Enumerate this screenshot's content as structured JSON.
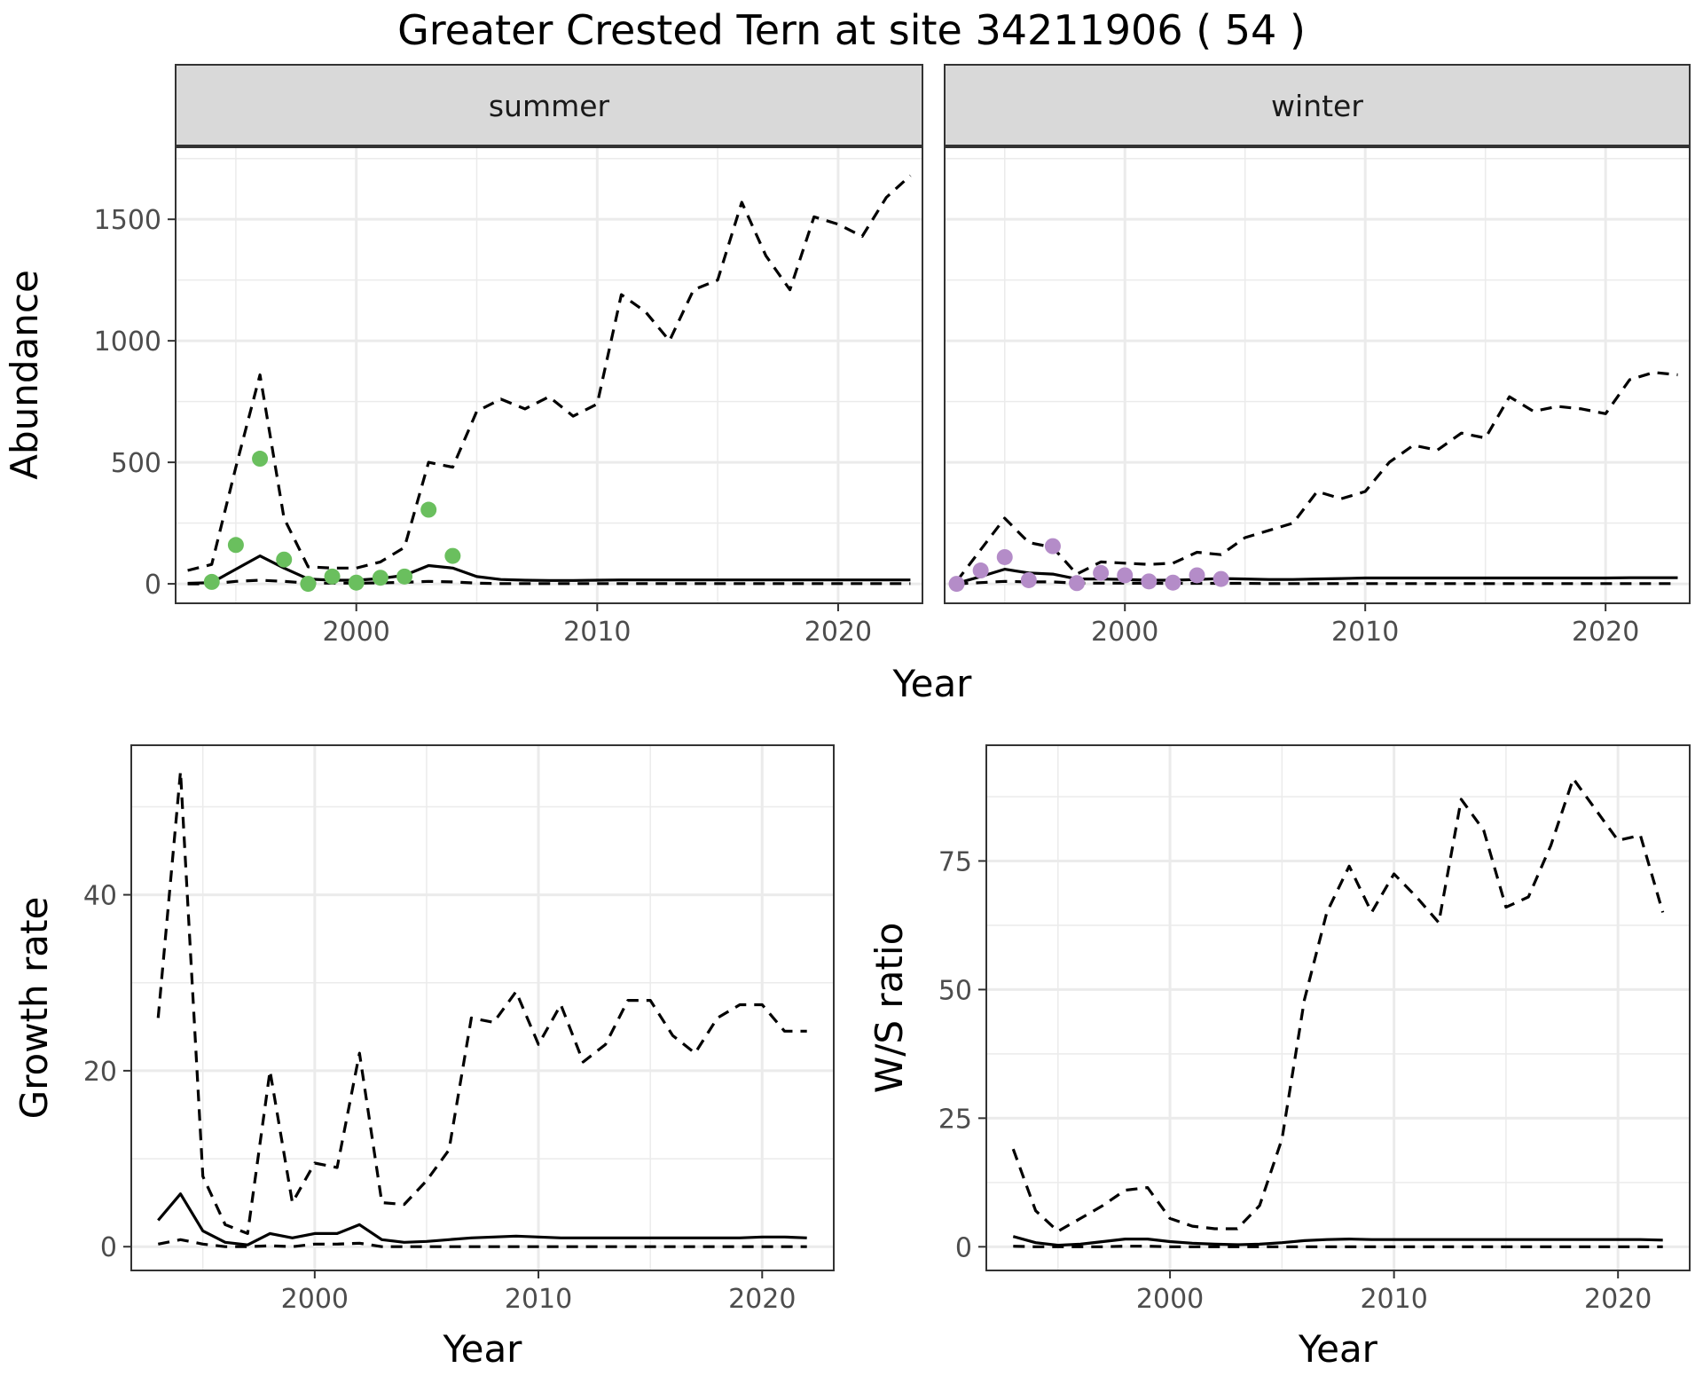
{
  "title": "Greater Crested Tern at site 34211906 ( 54 )",
  "colors": {
    "summer_points": "#6abf5e",
    "winter_points": "#b48cc8",
    "lines": "#000000",
    "strip_fill": "#d9d9d9",
    "grid": "#ebebeb"
  },
  "chart_data": [
    {
      "type": "line",
      "facet": "summer",
      "xlabel": "Year",
      "ylabel": "Abundance",
      "xlim": [
        1992.5,
        2023.5
      ],
      "ylim": [
        -80,
        1800
      ],
      "xticks": [
        2000,
        2010,
        2020
      ],
      "yticks": [
        0,
        500,
        1000,
        1500
      ],
      "point_color": "#6abf5e",
      "series": [
        {
          "role": "estimate",
          "style": "solid",
          "x": [
            1993,
            1994,
            1995,
            1996,
            1997,
            1998,
            1999,
            2000,
            2001,
            2002,
            2003,
            2004,
            2005,
            2006,
            2007,
            2008,
            2009,
            2010,
            2011,
            2012,
            2013,
            2014,
            2015,
            2016,
            2017,
            2018,
            2019,
            2020,
            2021,
            2022,
            2023
          ],
          "y": [
            2,
            5,
            60,
            115,
            65,
            20,
            15,
            15,
            22,
            35,
            75,
            65,
            30,
            18,
            15,
            14,
            14,
            15,
            16,
            16,
            16,
            16,
            16,
            16,
            16,
            16,
            16,
            16,
            16,
            16,
            16
          ]
        },
        {
          "role": "upper",
          "style": "dashed",
          "x": [
            1993,
            1994,
            1995,
            1996,
            1997,
            1998,
            1999,
            2000,
            2001,
            2002,
            2003,
            2004,
            2005,
            2006,
            2007,
            2008,
            2009,
            2010,
            2011,
            2012,
            2013,
            2014,
            2015,
            2016,
            2017,
            2018,
            2019,
            2020,
            2021,
            2022,
            2023
          ],
          "y": [
            55,
            80,
            480,
            860,
            270,
            70,
            65,
            65,
            90,
            150,
            500,
            480,
            710,
            760,
            720,
            770,
            690,
            740,
            1190,
            1120,
            1000,
            1210,
            1250,
            1570,
            1350,
            1210,
            1510,
            1480,
            1430,
            1590,
            1680
          ]
        },
        {
          "role": "lower",
          "style": "dashed",
          "x": [
            1993,
            1994,
            1995,
            1996,
            1997,
            1998,
            1999,
            2000,
            2001,
            2002,
            2003,
            2004,
            2005,
            2006,
            2007,
            2008,
            2009,
            2010,
            2011,
            2012,
            2013,
            2014,
            2015,
            2016,
            2017,
            2018,
            2019,
            2020,
            2021,
            2022,
            2023
          ],
          "y": [
            0,
            0,
            10,
            15,
            10,
            3,
            3,
            3,
            4,
            6,
            10,
            8,
            3,
            1,
            1,
            1,
            1,
            1,
            1,
            1,
            1,
            1,
            1,
            1,
            1,
            1,
            1,
            1,
            1,
            1,
            1
          ]
        }
      ],
      "points": {
        "x": [
          1994,
          1995,
          1996,
          1997,
          1998,
          1999,
          2000,
          2001,
          2002,
          2003,
          2004
        ],
        "y": [
          8,
          160,
          515,
          100,
          0,
          30,
          5,
          25,
          30,
          305,
          115
        ]
      }
    },
    {
      "type": "line",
      "facet": "winter",
      "xlabel": "Year",
      "ylabel": "",
      "xlim": [
        1992.5,
        2023.5
      ],
      "ylim": [
        -80,
        1800
      ],
      "xticks": [
        2000,
        2010,
        2020
      ],
      "yticks": [
        0,
        500,
        1000,
        1500
      ],
      "point_color": "#b48cc8",
      "series": [
        {
          "role": "estimate",
          "style": "solid",
          "x": [
            1993,
            1994,
            1995,
            1996,
            1997,
            1998,
            1999,
            2000,
            2001,
            2002,
            2003,
            2004,
            2005,
            2006,
            2007,
            2008,
            2009,
            2010,
            2011,
            2012,
            2013,
            2014,
            2015,
            2016,
            2017,
            2018,
            2019,
            2020,
            2021,
            2022,
            2023
          ],
          "y": [
            2,
            30,
            60,
            45,
            40,
            20,
            20,
            18,
            15,
            15,
            18,
            22,
            20,
            18,
            18,
            20,
            22,
            24,
            24,
            24,
            24,
            24,
            24,
            24,
            24,
            24,
            24,
            24,
            25,
            25,
            25
          ]
        },
        {
          "role": "upper",
          "style": "dashed",
          "x": [
            1993,
            1994,
            1995,
            1996,
            1997,
            1998,
            1999,
            2000,
            2001,
            2002,
            2003,
            2004,
            2005,
            2006,
            2007,
            2008,
            2009,
            2010,
            2011,
            2012,
            2013,
            2014,
            2015,
            2016,
            2017,
            2018,
            2019,
            2020,
            2021,
            2022,
            2023
          ],
          "y": [
            10,
            140,
            270,
            170,
            150,
            40,
            90,
            85,
            80,
            85,
            130,
            120,
            190,
            220,
            250,
            380,
            350,
            380,
            500,
            570,
            550,
            620,
            600,
            770,
            710,
            730,
            720,
            700,
            840,
            870,
            860
          ]
        },
        {
          "role": "lower",
          "style": "dashed",
          "x": [
            1993,
            1994,
            1995,
            1996,
            1997,
            1998,
            1999,
            2000,
            2001,
            2002,
            2003,
            2004,
            2005,
            2006,
            2007,
            2008,
            2009,
            2010,
            2011,
            2012,
            2013,
            2014,
            2015,
            2016,
            2017,
            2018,
            2019,
            2020,
            2021,
            2022,
            2023
          ],
          "y": [
            0,
            5,
            10,
            8,
            8,
            3,
            3,
            3,
            2,
            2,
            2,
            2,
            2,
            1,
            1,
            1,
            1,
            1,
            1,
            1,
            1,
            1,
            1,
            1,
            1,
            1,
            1,
            1,
            1,
            1,
            1
          ]
        }
      ],
      "points": {
        "x": [
          1993,
          1994,
          1995,
          1996,
          1997,
          1998,
          1999,
          2000,
          2001,
          2002,
          2003,
          2004
        ],
        "y": [
          0,
          55,
          110,
          15,
          155,
          3,
          45,
          35,
          10,
          5,
          35,
          20
        ]
      }
    },
    {
      "type": "line",
      "xlabel": "Year",
      "ylabel": "Growth rate",
      "xlim": [
        1991.8,
        2023.2
      ],
      "ylim": [
        -2.7,
        57
      ],
      "xticks": [
        2000,
        2010,
        2020
      ],
      "yticks": [
        0,
        20,
        40
      ],
      "series": [
        {
          "role": "estimate",
          "style": "solid",
          "x": [
            1993,
            1994,
            1995,
            1996,
            1997,
            1998,
            1999,
            2000,
            2001,
            2002,
            2003,
            2004,
            2005,
            2006,
            2007,
            2008,
            2009,
            2010,
            2011,
            2012,
            2013,
            2014,
            2015,
            2016,
            2017,
            2018,
            2019,
            2020,
            2021,
            2022
          ],
          "y": [
            3,
            6,
            1.8,
            0.5,
            0.2,
            1.5,
            1,
            1.5,
            1.5,
            2.5,
            0.8,
            0.5,
            0.6,
            0.8,
            1,
            1.1,
            1.2,
            1.1,
            1,
            1,
            1,
            1,
            1,
            1,
            1,
            1,
            1,
            1.1,
            1.1,
            1
          ]
        },
        {
          "role": "upper",
          "style": "dashed",
          "x": [
            1993,
            1994,
            1995,
            1996,
            1997,
            1998,
            1999,
            2000,
            2001,
            2002,
            2003,
            2004,
            2005,
            2006,
            2007,
            2008,
            2009,
            2010,
            2011,
            2012,
            2013,
            2014,
            2015,
            2016,
            2017,
            2018,
            2019,
            2020,
            2021,
            2022
          ],
          "y": [
            26,
            54,
            8,
            2.5,
            1.5,
            20,
            5,
            9.5,
            9,
            22,
            5,
            4.8,
            7.5,
            11,
            26,
            25.5,
            29,
            23,
            27.5,
            21,
            23,
            28,
            28,
            24,
            22,
            26,
            27.5,
            27.5,
            24.5,
            24.5
          ]
        },
        {
          "role": "lower",
          "style": "dashed",
          "x": [
            1993,
            1994,
            1995,
            1996,
            1997,
            1998,
            1999,
            2000,
            2001,
            2002,
            2003,
            2004,
            2005,
            2006,
            2007,
            2008,
            2009,
            2010,
            2011,
            2012,
            2013,
            2014,
            2015,
            2016,
            2017,
            2018,
            2019,
            2020,
            2021,
            2022
          ],
          "y": [
            0.3,
            0.8,
            0.3,
            0,
            0,
            0.1,
            0,
            0.3,
            0.3,
            0.4,
            0,
            0,
            0,
            0,
            0,
            0,
            0,
            0,
            0,
            0,
            0,
            0,
            0,
            0,
            0,
            0,
            0,
            0,
            0,
            0
          ]
        }
      ]
    },
    {
      "type": "line",
      "xlabel": "Year",
      "ylabel": "W/S ratio",
      "xlim": [
        1991.8,
        2023.2
      ],
      "ylim": [
        -4.6,
        97.5
      ],
      "xticks": [
        2000,
        2010,
        2020
      ],
      "yticks": [
        0,
        25,
        50,
        75
      ],
      "series": [
        {
          "role": "estimate",
          "style": "solid",
          "x": [
            1993,
            1994,
            1995,
            1996,
            1997,
            1998,
            1999,
            2000,
            2001,
            2002,
            2003,
            2004,
            2005,
            2006,
            2007,
            2008,
            2009,
            2010,
            2011,
            2012,
            2013,
            2014,
            2015,
            2016,
            2017,
            2018,
            2019,
            2020,
            2021,
            2022
          ],
          "y": [
            2,
            0.8,
            0.3,
            0.5,
            1,
            1.5,
            1.5,
            1,
            0.7,
            0.5,
            0.4,
            0.5,
            0.8,
            1.2,
            1.4,
            1.5,
            1.4,
            1.4,
            1.4,
            1.4,
            1.4,
            1.4,
            1.4,
            1.4,
            1.4,
            1.4,
            1.4,
            1.4,
            1.4,
            1.3
          ]
        },
        {
          "role": "upper",
          "style": "dashed",
          "x": [
            1993,
            1994,
            1995,
            1996,
            1997,
            1998,
            1999,
            2000,
            2001,
            2002,
            2003,
            2004,
            2005,
            2006,
            2007,
            2008,
            2009,
            2010,
            2011,
            2012,
            2013,
            2014,
            2015,
            2016,
            2017,
            2018,
            2019,
            2020,
            2021,
            2022
          ],
          "y": [
            19,
            7,
            3,
            5.5,
            8,
            11,
            11.5,
            5.5,
            4,
            3.5,
            3.5,
            8,
            21,
            48,
            65,
            74,
            65,
            72.5,
            68,
            63,
            87,
            81,
            66,
            68,
            78,
            91,
            85,
            79,
            80,
            65
          ]
        },
        {
          "role": "lower",
          "style": "dashed",
          "x": [
            1993,
            1994,
            1995,
            1996,
            1997,
            1998,
            1999,
            2000,
            2001,
            2002,
            2003,
            2004,
            2005,
            2006,
            2007,
            2008,
            2009,
            2010,
            2011,
            2012,
            2013,
            2014,
            2015,
            2016,
            2017,
            2018,
            2019,
            2020,
            2021,
            2022
          ],
          "y": [
            0.1,
            0,
            0,
            0,
            0,
            0.1,
            0.1,
            0,
            0,
            0,
            0,
            0,
            0,
            0,
            0,
            0,
            0,
            0,
            0,
            0,
            0,
            0,
            0,
            0,
            0,
            0,
            0,
            0,
            0,
            0
          ]
        }
      ]
    }
  ]
}
